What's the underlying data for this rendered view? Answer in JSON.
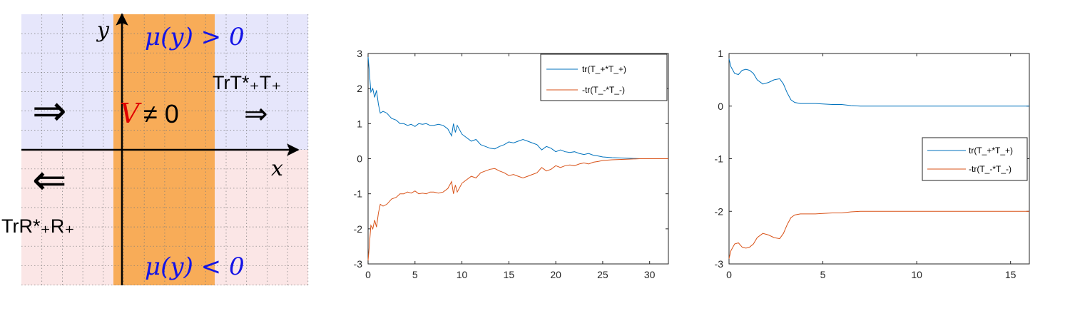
{
  "schematic": {
    "axis_y": "y",
    "axis_x": "x",
    "mu_top": "μ(y) > 0",
    "mu_bottom": "μ(y) < 0",
    "V_symbol": "V",
    "V_relation": "≠ 0",
    "arrow_left_top": "⇒",
    "arrow_right_top": "⇒",
    "arrow_left_bottom": "⇐",
    "trans_label_top": "TrT*₊T₊",
    "refl_label_bottom": "TrR*₊R₊",
    "colors": {
      "upper_region": "#e6e6fb",
      "lower_region": "#fbe6e6",
      "strip": "#f8ac58",
      "mu_text": "#1414e6",
      "V_text": "#e00000"
    }
  },
  "chart_data": [
    {
      "type": "line",
      "title": "",
      "xlabel": "",
      "ylabel": "",
      "xlim": [
        0,
        32
      ],
      "ylim": [
        -3,
        3
      ],
      "xticks": [
        0,
        5,
        10,
        15,
        20,
        25,
        30
      ],
      "yticks": [
        -3,
        -2,
        -1,
        0,
        1,
        2,
        3
      ],
      "legend_position": "top-right",
      "series": [
        {
          "name": "tr(T_+*T_+)",
          "color": "#0072bd",
          "x": [
            0,
            0.1,
            0.3,
            0.5,
            0.7,
            0.9,
            1.1,
            1.3,
            1.6,
            2.0,
            2.5,
            3.0,
            3.4,
            3.8,
            4.2,
            4.6,
            5.0,
            5.4,
            5.8,
            6.2,
            6.6,
            7.0,
            7.5,
            8.0,
            8.5,
            8.9,
            9.1,
            9.3,
            9.5,
            10.0,
            10.5,
            11.0,
            11.5,
            12.0,
            12.5,
            13.0,
            13.5,
            14.0,
            14.5,
            15.0,
            15.5,
            16.0,
            16.5,
            17.0,
            17.5,
            18.0,
            18.5,
            19.0,
            19.5,
            20.0,
            20.5,
            21.0,
            21.5,
            22.0,
            22.5,
            23.0,
            23.5,
            24.0,
            24.5,
            25.0,
            26.0,
            27.0,
            28.0,
            29.0,
            30.0,
            31.0,
            32.0
          ],
          "values": [
            2.9,
            2.6,
            1.9,
            2.0,
            1.75,
            1.95,
            1.55,
            1.3,
            1.35,
            1.3,
            1.15,
            1.1,
            1.0,
            1.0,
            0.95,
            0.98,
            0.92,
            1.0,
            0.98,
            1.0,
            0.95,
            0.95,
            0.98,
            0.95,
            0.85,
            0.65,
            1.0,
            0.75,
            0.95,
            0.7,
            0.6,
            0.5,
            0.55,
            0.4,
            0.35,
            0.3,
            0.28,
            0.35,
            0.4,
            0.48,
            0.45,
            0.5,
            0.55,
            0.5,
            0.45,
            0.4,
            0.25,
            0.35,
            0.3,
            0.2,
            0.25,
            0.2,
            0.18,
            0.2,
            0.15,
            0.12,
            0.15,
            0.1,
            0.08,
            0.05,
            0.03,
            0.02,
            0.01,
            0.0,
            0.0,
            0.0,
            0.0
          ]
        },
        {
          "name": "-tr(T_-*T_-)",
          "color": "#d95319",
          "x": [
            0,
            0.1,
            0.3,
            0.5,
            0.7,
            0.9,
            1.1,
            1.3,
            1.6,
            2.0,
            2.5,
            3.0,
            3.4,
            3.8,
            4.2,
            4.6,
            5.0,
            5.4,
            5.8,
            6.2,
            6.6,
            7.0,
            7.5,
            8.0,
            8.5,
            8.9,
            9.1,
            9.3,
            9.5,
            10.0,
            10.5,
            11.0,
            11.5,
            12.0,
            12.5,
            13.0,
            13.5,
            14.0,
            14.5,
            15.0,
            15.5,
            16.0,
            16.5,
            17.0,
            17.5,
            18.0,
            18.5,
            19.0,
            19.5,
            20.0,
            20.5,
            21.0,
            21.5,
            22.0,
            22.5,
            23.0,
            23.5,
            24.0,
            24.5,
            25.0,
            26.0,
            27.0,
            28.0,
            29.0,
            30.0,
            31.0,
            32.0
          ],
          "values": [
            -2.9,
            -2.6,
            -1.9,
            -2.0,
            -1.75,
            -1.95,
            -1.55,
            -1.3,
            -1.35,
            -1.3,
            -1.15,
            -1.1,
            -1.0,
            -1.0,
            -0.95,
            -0.98,
            -0.92,
            -1.0,
            -0.98,
            -1.0,
            -0.95,
            -0.95,
            -0.98,
            -0.95,
            -0.85,
            -0.65,
            -1.0,
            -0.75,
            -0.95,
            -0.7,
            -0.6,
            -0.5,
            -0.55,
            -0.4,
            -0.35,
            -0.3,
            -0.28,
            -0.35,
            -0.4,
            -0.48,
            -0.45,
            -0.5,
            -0.55,
            -0.5,
            -0.45,
            -0.4,
            -0.25,
            -0.35,
            -0.3,
            -0.2,
            -0.25,
            -0.2,
            -0.18,
            -0.2,
            -0.15,
            -0.12,
            -0.15,
            -0.1,
            -0.08,
            -0.05,
            -0.03,
            -0.02,
            -0.01,
            0.0,
            0.0,
            0.0,
            0.0
          ]
        }
      ]
    },
    {
      "type": "line",
      "title": "",
      "xlabel": "",
      "ylabel": "",
      "xlim": [
        0,
        16
      ],
      "ylim": [
        -3,
        1
      ],
      "xticks": [
        0,
        5,
        10,
        15
      ],
      "yticks": [
        -3,
        -2,
        -1,
        0,
        1
      ],
      "legend_position": "center-right",
      "series": [
        {
          "name": "tr(T_+*T_+)",
          "color": "#0072bd",
          "x": [
            0,
            0.1,
            0.3,
            0.5,
            0.7,
            0.9,
            1.1,
            1.3,
            1.5,
            1.8,
            2.1,
            2.4,
            2.7,
            2.9,
            3.1,
            3.3,
            3.5,
            3.8,
            4.2,
            4.6,
            5.0,
            5.5,
            6.0,
            6.5,
            7.0,
            8.0,
            9.0,
            10.0,
            12.0,
            14.0,
            16.0
          ],
          "values": [
            0.9,
            0.75,
            0.62,
            0.6,
            0.68,
            0.7,
            0.68,
            0.62,
            0.5,
            0.42,
            0.45,
            0.5,
            0.52,
            0.42,
            0.25,
            0.12,
            0.07,
            0.05,
            0.05,
            0.05,
            0.04,
            0.03,
            0.03,
            0.01,
            0.0,
            0.0,
            0.0,
            0.0,
            0.0,
            0.0,
            0.0
          ]
        },
        {
          "name": "-tr(T_-*T_-)",
          "color": "#d95319",
          "x": [
            0,
            0.1,
            0.3,
            0.5,
            0.7,
            0.9,
            1.1,
            1.3,
            1.5,
            1.8,
            2.1,
            2.4,
            2.7,
            2.9,
            3.1,
            3.3,
            3.5,
            3.8,
            4.2,
            4.6,
            5.0,
            5.5,
            6.0,
            6.5,
            7.0,
            8.0,
            9.0,
            10.0,
            12.0,
            14.0,
            16.0
          ],
          "values": [
            -2.9,
            -2.75,
            -2.62,
            -2.6,
            -2.68,
            -2.7,
            -2.68,
            -2.62,
            -2.5,
            -2.42,
            -2.45,
            -2.5,
            -2.52,
            -2.42,
            -2.25,
            -2.12,
            -2.07,
            -2.05,
            -2.05,
            -2.05,
            -2.04,
            -2.03,
            -2.03,
            -2.01,
            -2.0,
            -2.0,
            -2.0,
            -2.0,
            -2.0,
            -2.0,
            -2.0
          ]
        }
      ]
    }
  ]
}
